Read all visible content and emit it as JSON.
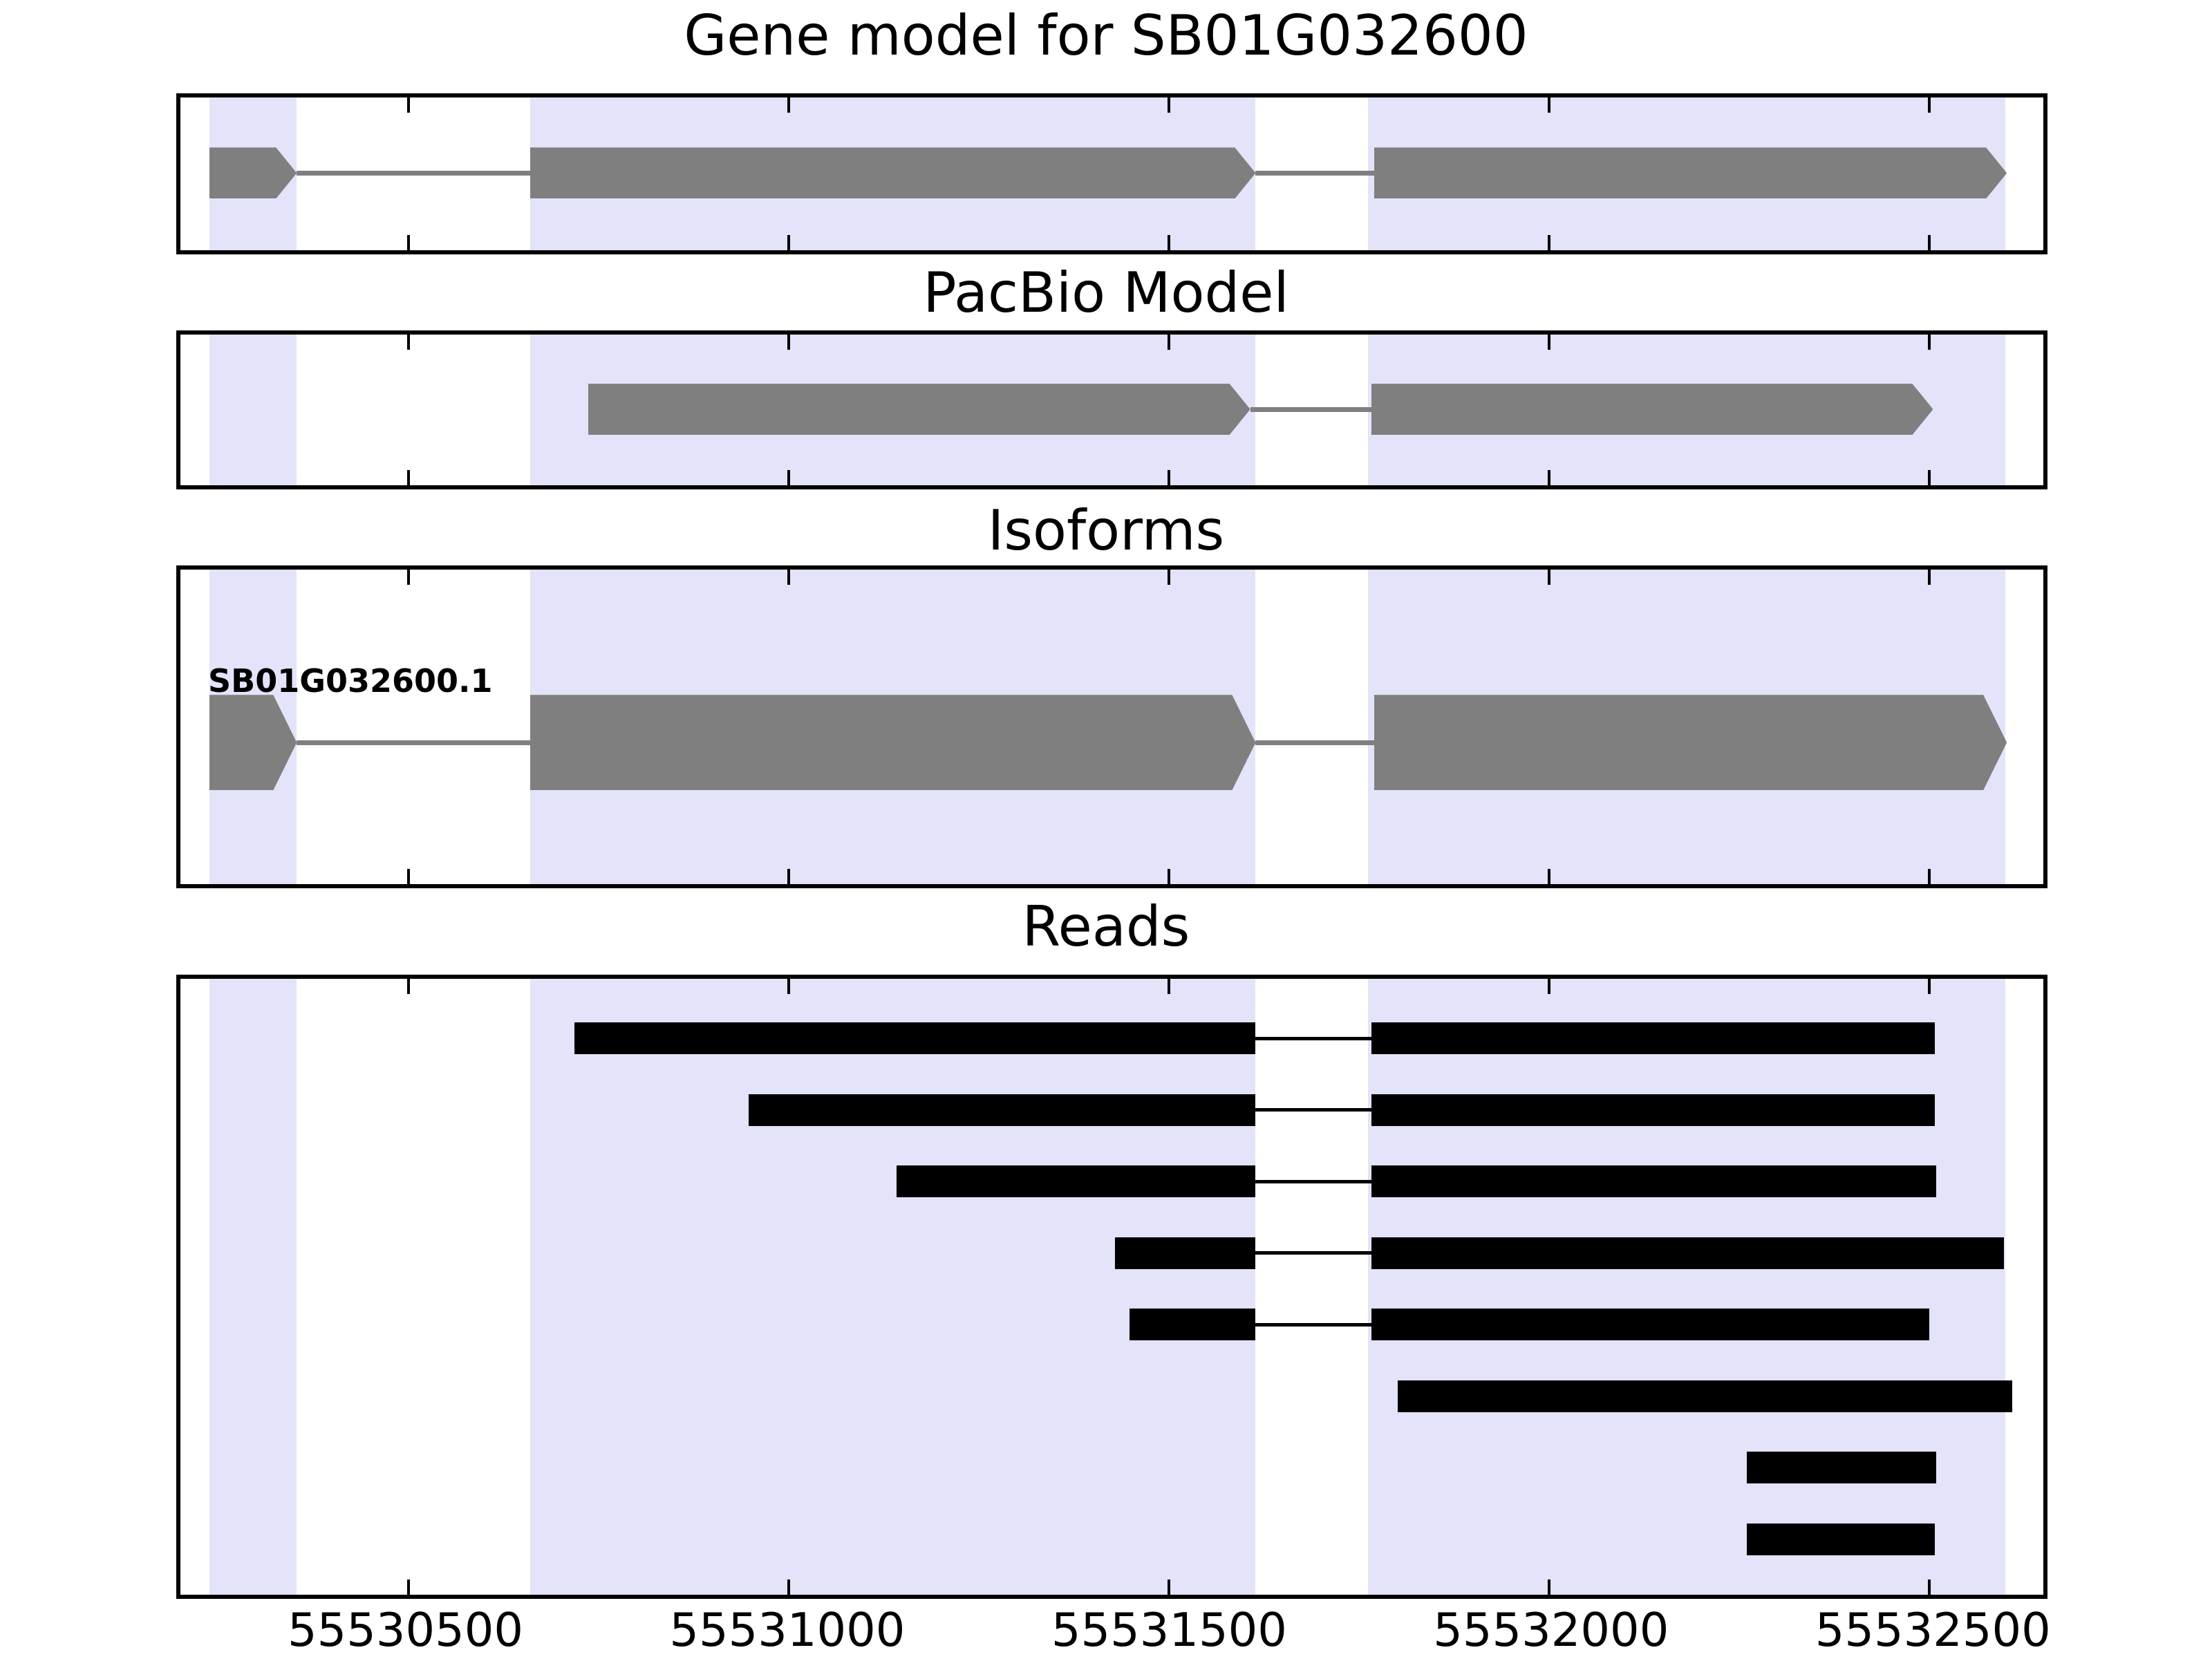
{
  "chart_data": {
    "type": "gene-model-tracks",
    "xlim": [
      55530200,
      55532650
    ],
    "xticks": [
      55530500,
      55531000,
      55531500,
      55532000,
      55532500
    ],
    "xtick_labels": [
      "55530500",
      "55531000",
      "55531500",
      "55532000",
      "55532500"
    ],
    "grid": false,
    "legend": "none",
    "highlight_regions": [
      [
        55530238,
        55530353
      ],
      [
        55530660,
        55531614
      ],
      [
        55531762,
        55532600
      ]
    ],
    "colors": {
      "highlight": "#e3e3f9",
      "exon": "#7f7f7f",
      "read": "#000000",
      "frame": "#000000",
      "text": "#000000",
      "background": "#ffffff"
    },
    "panels": [
      {
        "title": "Gene model for SB01G032600",
        "kind": "transcript-track",
        "transcripts": [
          {
            "name": "",
            "strand": "+",
            "exons": [
              [
                55530238,
                55530353
              ],
              [
                55530660,
                55531614
              ],
              [
                55531770,
                55532602
              ]
            ]
          }
        ]
      },
      {
        "title": "PacBio Model",
        "kind": "transcript-track",
        "transcripts": [
          {
            "name": "",
            "strand": "+",
            "exons": [
              [
                55530736,
                55531607
              ],
              [
                55531766,
                55532505
              ]
            ]
          }
        ]
      },
      {
        "title": "Isoforms",
        "kind": "transcript-track",
        "transcripts": [
          {
            "name": "SB01G032600.1",
            "strand": "+",
            "exons": [
              [
                55530238,
                55530353
              ],
              [
                55530660,
                55531614
              ],
              [
                55531770,
                55532602
              ]
            ]
          }
        ]
      },
      {
        "title": "Reads",
        "kind": "read-track",
        "reads": [
          {
            "segments": [
              [
                55530718,
                55531614
              ],
              [
                55531766,
                55532507
              ]
            ]
          },
          {
            "segments": [
              [
                55530947,
                55531614
              ],
              [
                55531766,
                55532507
              ]
            ]
          },
          {
            "segments": [
              [
                55531142,
                55531614
              ],
              [
                55531766,
                55532509
              ]
            ]
          },
          {
            "segments": [
              [
                55531429,
                55531614
              ],
              [
                55531766,
                55532598
              ]
            ]
          },
          {
            "segments": [
              [
                55531448,
                55531614
              ],
              [
                55531766,
                55532500
              ]
            ]
          },
          {
            "segments": [
              [
                55531801,
                55532609
              ]
            ]
          },
          {
            "segments": [
              [
                55532260,
                55532509
              ]
            ]
          },
          {
            "segments": [
              [
                55532260,
                55532507
              ]
            ]
          }
        ]
      }
    ]
  }
}
